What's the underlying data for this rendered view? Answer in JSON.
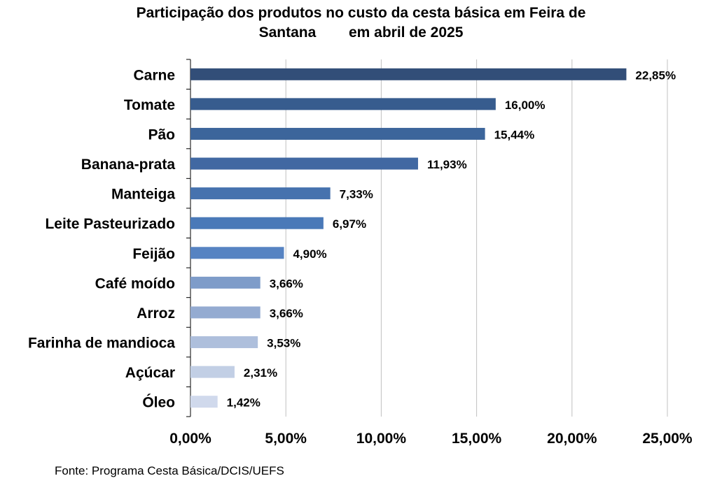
{
  "title_line1": "Participação dos produtos no custo da cesta básica em Feira de",
  "title_line2": "Santana        em abril de 2025",
  "source": "Fonte: Programa Cesta Básica/DCIS/UEFS",
  "chart_data": {
    "type": "bar",
    "orientation": "horizontal",
    "title": "Participação dos produtos no custo da cesta básica em Feira de Santana        em abril de 2025",
    "categories": [
      "Carne",
      "Tomate",
      "Pão",
      "Banana-prata",
      "Manteiga",
      "Leite Pasteurizado",
      "Feijão",
      "Café moído",
      "Arroz",
      "Farinha de mandioca",
      "Açúcar",
      "Óleo"
    ],
    "values": [
      22.85,
      16.0,
      15.44,
      11.93,
      7.33,
      6.97,
      4.9,
      3.66,
      3.66,
      3.53,
      2.31,
      1.42
    ],
    "value_labels": [
      "22,85%",
      "16,00%",
      "15,44%",
      "11,93%",
      "7,33%",
      "6,97%",
      "4,90%",
      "3,66%",
      "3,66%",
      "3,53%",
      "2,31%",
      "1,42%"
    ],
    "bar_colors": [
      "#324e78",
      "#375c8e",
      "#3c659b",
      "#4168a2",
      "#4672ae",
      "#4a79b8",
      "#5683c2",
      "#7e9cc9",
      "#94abd1",
      "#aebfdc",
      "#c2cfe5",
      "#d0d9ec"
    ],
    "xlim": [
      0,
      25
    ],
    "xticks": [
      0,
      5,
      10,
      15,
      20,
      25
    ],
    "xtick_labels": [
      "0,00%",
      "5,00%",
      "10,00%",
      "15,00%",
      "20,00%",
      "25,00%"
    ],
    "xlabel": "",
    "ylabel": "",
    "grid": true,
    "gridline_color": "#c0c0c0"
  }
}
